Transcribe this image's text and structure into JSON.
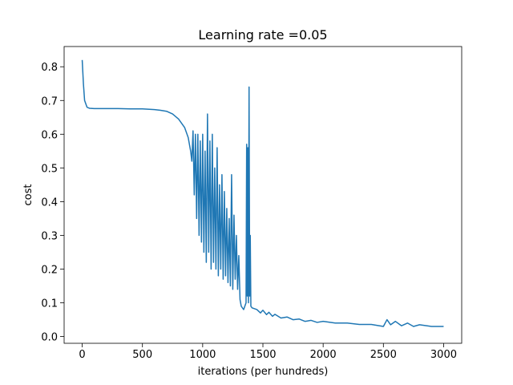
{
  "chart_data": {
    "type": "line",
    "title": "Learning rate =0.05",
    "xlabel": "iterations (per hundreds)",
    "ylabel": "cost",
    "xlim": [
      -150,
      3150
    ],
    "ylim": [
      -0.02,
      0.86
    ],
    "xticks": [
      0,
      500,
      1000,
      1500,
      2000,
      2500,
      3000
    ],
    "yticks": [
      {
        "value": 0,
        "label": "0.0"
      },
      0.1,
      0.2,
      0.3,
      0.4,
      0.5,
      0.6,
      0.7,
      0.8
    ],
    "series": [
      {
        "color": "#1f77b4",
        "x": [
          0,
          10,
          20,
          40,
          60,
          100,
          200,
          300,
          400,
          500,
          600,
          650,
          700,
          750,
          800,
          850,
          880,
          900,
          910,
          920,
          930,
          940,
          950,
          960,
          970,
          980,
          990,
          1000,
          1010,
          1020,
          1030,
          1040,
          1050,
          1060,
          1070,
          1080,
          1090,
          1100,
          1110,
          1120,
          1130,
          1140,
          1150,
          1160,
          1170,
          1180,
          1190,
          1200,
          1210,
          1220,
          1230,
          1240,
          1250,
          1260,
          1270,
          1280,
          1290,
          1300,
          1310,
          1320,
          1340,
          1360,
          1365,
          1370,
          1375,
          1380,
          1385,
          1390,
          1395,
          1400,
          1410,
          1450,
          1480,
          1500,
          1530,
          1550,
          1580,
          1600,
          1650,
          1700,
          1750,
          1800,
          1850,
          1900,
          1950,
          2000,
          2100,
          2200,
          2300,
          2400,
          2500,
          2530,
          2560,
          2600,
          2650,
          2700,
          2750,
          2800,
          2900,
          3000
        ],
        "values": [
          0.82,
          0.75,
          0.7,
          0.68,
          0.677,
          0.676,
          0.676,
          0.676,
          0.675,
          0.675,
          0.673,
          0.671,
          0.668,
          0.66,
          0.645,
          0.62,
          0.59,
          0.55,
          0.52,
          0.61,
          0.42,
          0.6,
          0.35,
          0.6,
          0.3,
          0.58,
          0.28,
          0.6,
          0.25,
          0.55,
          0.22,
          0.66,
          0.25,
          0.58,
          0.2,
          0.6,
          0.22,
          0.5,
          0.2,
          0.56,
          0.18,
          0.45,
          0.2,
          0.48,
          0.17,
          0.43,
          0.18,
          0.38,
          0.16,
          0.35,
          0.15,
          0.48,
          0.14,
          0.36,
          0.17,
          0.3,
          0.14,
          0.24,
          0.11,
          0.09,
          0.08,
          0.1,
          0.57,
          0.12,
          0.56,
          0.1,
          0.74,
          0.12,
          0.3,
          0.09,
          0.085,
          0.08,
          0.07,
          0.078,
          0.065,
          0.072,
          0.06,
          0.066,
          0.055,
          0.058,
          0.05,
          0.052,
          0.045,
          0.048,
          0.042,
          0.045,
          0.04,
          0.04,
          0.036,
          0.036,
          0.03,
          0.05,
          0.035,
          0.045,
          0.032,
          0.04,
          0.03,
          0.035,
          0.03,
          0.03
        ]
      }
    ]
  }
}
